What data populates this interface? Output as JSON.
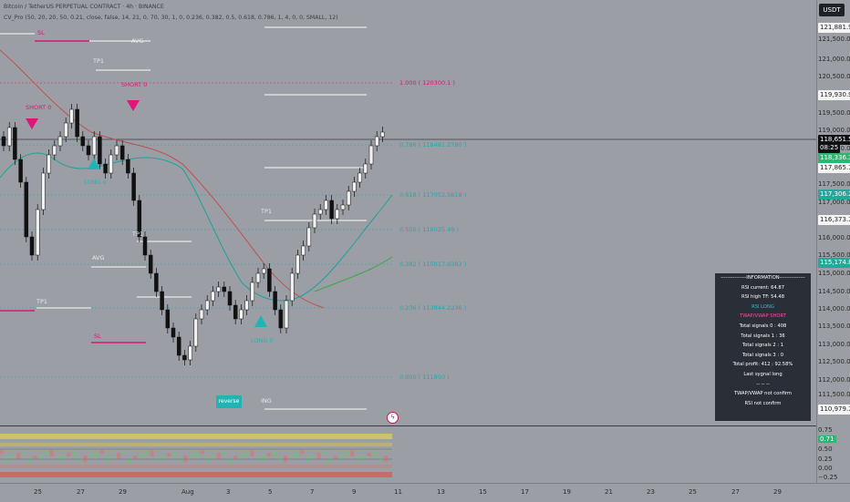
{
  "header": {
    "symbol_line": "Bitcoin / TetherUS PERPETUAL CONTRACT · 4h · BINANCE",
    "indicator_line": "CV_Pro (50, 20, 20, 50, 0.21, close, false, 14, 21, 0, 70, 30, 1, 0, 0.236, 0.382, 0.5, 0.618, 0.786, 1, 4, 0, 0, SMALL, 12)"
  },
  "currency_button": "USDT",
  "price_axis": {
    "labels": [
      "121,500.0",
      "121,000.0",
      "120,500.0",
      "120,000.0",
      "119,500.0",
      "119,000.0",
      "118,500.0",
      "118,000.0",
      "117,500.0",
      "117,000.0",
      "116,500.0",
      "116,000.0",
      "115,500.0",
      "115,000.0",
      "114,500.0",
      "114,000.0",
      "113,500.0",
      "113,000.0",
      "112,500.0",
      "112,000.0",
      "111,500.0",
      "111,000.0"
    ],
    "tags": [
      {
        "text": "121,881.9",
        "bg": "#f4f4f4",
        "fg": "#222"
      },
      {
        "text": "119,930.9",
        "bg": "#f4f4f4",
        "fg": "#222"
      },
      {
        "text": "118,651.5",
        "bg": "#0f1115",
        "fg": "#fff"
      },
      {
        "text": "08:25",
        "bg": "#0f1115",
        "fg": "#fff"
      },
      {
        "text": "118,336.3",
        "bg": "#2bb673",
        "fg": "#fff"
      },
      {
        "text": "117,865.1",
        "bg": "#f4f4f4",
        "fg": "#222"
      },
      {
        "text": "117,306.2",
        "bg": "#25a89a",
        "fg": "#fff"
      },
      {
        "text": "116,373.1",
        "bg": "#f4f4f4",
        "fg": "#222"
      },
      {
        "text": "115,174.8",
        "bg": "#25a89a",
        "fg": "#fff"
      },
      {
        "text": "110,979.1",
        "bg": "#f4f4f4",
        "fg": "#222"
      }
    ]
  },
  "sub_axis": {
    "labels": [
      "0.75",
      "0.71",
      "0.50",
      "0.25",
      "0.00",
      "−0.25"
    ]
  },
  "time_axis": {
    "labels": [
      "25",
      "27",
      "29",
      "Aug",
      "3",
      "5",
      "7",
      "9",
      "11",
      "13",
      "15",
      "17",
      "19",
      "21",
      "23",
      "25",
      "27",
      "29"
    ]
  },
  "fib_levels": [
    {
      "text": "1.000 ( 120300.1 )",
      "color": "#e0147a"
    },
    {
      "text": "0.786 ( 118481.2780 )",
      "color": "#13b0b0"
    },
    {
      "text": "0.618 ( 117052.5618 )",
      "color": "#13b0b0"
    },
    {
      "text": "0.500 ( 116025.49 )",
      "color": "#13b0b0"
    },
    {
      "text": "0.382 ( 115017.9382 )",
      "color": "#13b0b0"
    },
    {
      "text": "0.236 ( 113844.2236 )",
      "color": "#13b0b0"
    },
    {
      "text": "0.000 ( 111850 )",
      "color": "#13b0b0"
    }
  ],
  "markers": {
    "sl_top": "SL",
    "sl_bottom": "SL",
    "avg_1": "AVG",
    "avg_2": "AVG",
    "tp1_1": "TP1",
    "tp1_2": "TP1",
    "tp1_3": "TP1",
    "tp1_4": "TP1",
    "short_1": "SHORT 0",
    "short_2": "SHORT 0",
    "long_1": "LONG 0",
    "long_2": "LONG 0",
    "ing": "ING",
    "reverse": "reverse"
  },
  "info_table": {
    "rows": [
      {
        "text": "---------------INFORMATION---------------",
        "color": "#ffffff"
      },
      {
        "text": "RSI current: 64.87",
        "color": "#ffffff"
      },
      {
        "text": "RSI high TF: 54.48",
        "color": "#ffffff"
      },
      {
        "text": "RSI LONG",
        "color": "#26c6da"
      },
      {
        "text": "TWAP/VWAP SHORT",
        "color": "#ff4fa3"
      },
      {
        "text": "Total signals 0 : 408",
        "color": "#ffffff"
      },
      {
        "text": "Total signals 1 : 36",
        "color": "#ffffff"
      },
      {
        "text": "Total signals 2 : 1",
        "color": "#ffffff"
      },
      {
        "text": "Total signals 3 : 0",
        "color": "#ffffff"
      },
      {
        "text": "Total profit: 412 : 92.58%",
        "color": "#ffffff"
      },
      {
        "text": "Last sygnal long",
        "color": "#ffffff"
      },
      {
        "text": "-- -- --",
        "color": "#ffffff"
      },
      {
        "text": "TWAP/VWAP not confirm",
        "color": "#ffffff"
      },
      {
        "text": "RSI not confirm",
        "color": "#ffffff"
      }
    ]
  },
  "colors": {
    "magenta": "#e0147a",
    "teal": "#13b0b0",
    "ma_red": "#c0504d",
    "ma_teal": "#1aa39a",
    "ma_green": "#39a84a"
  }
}
